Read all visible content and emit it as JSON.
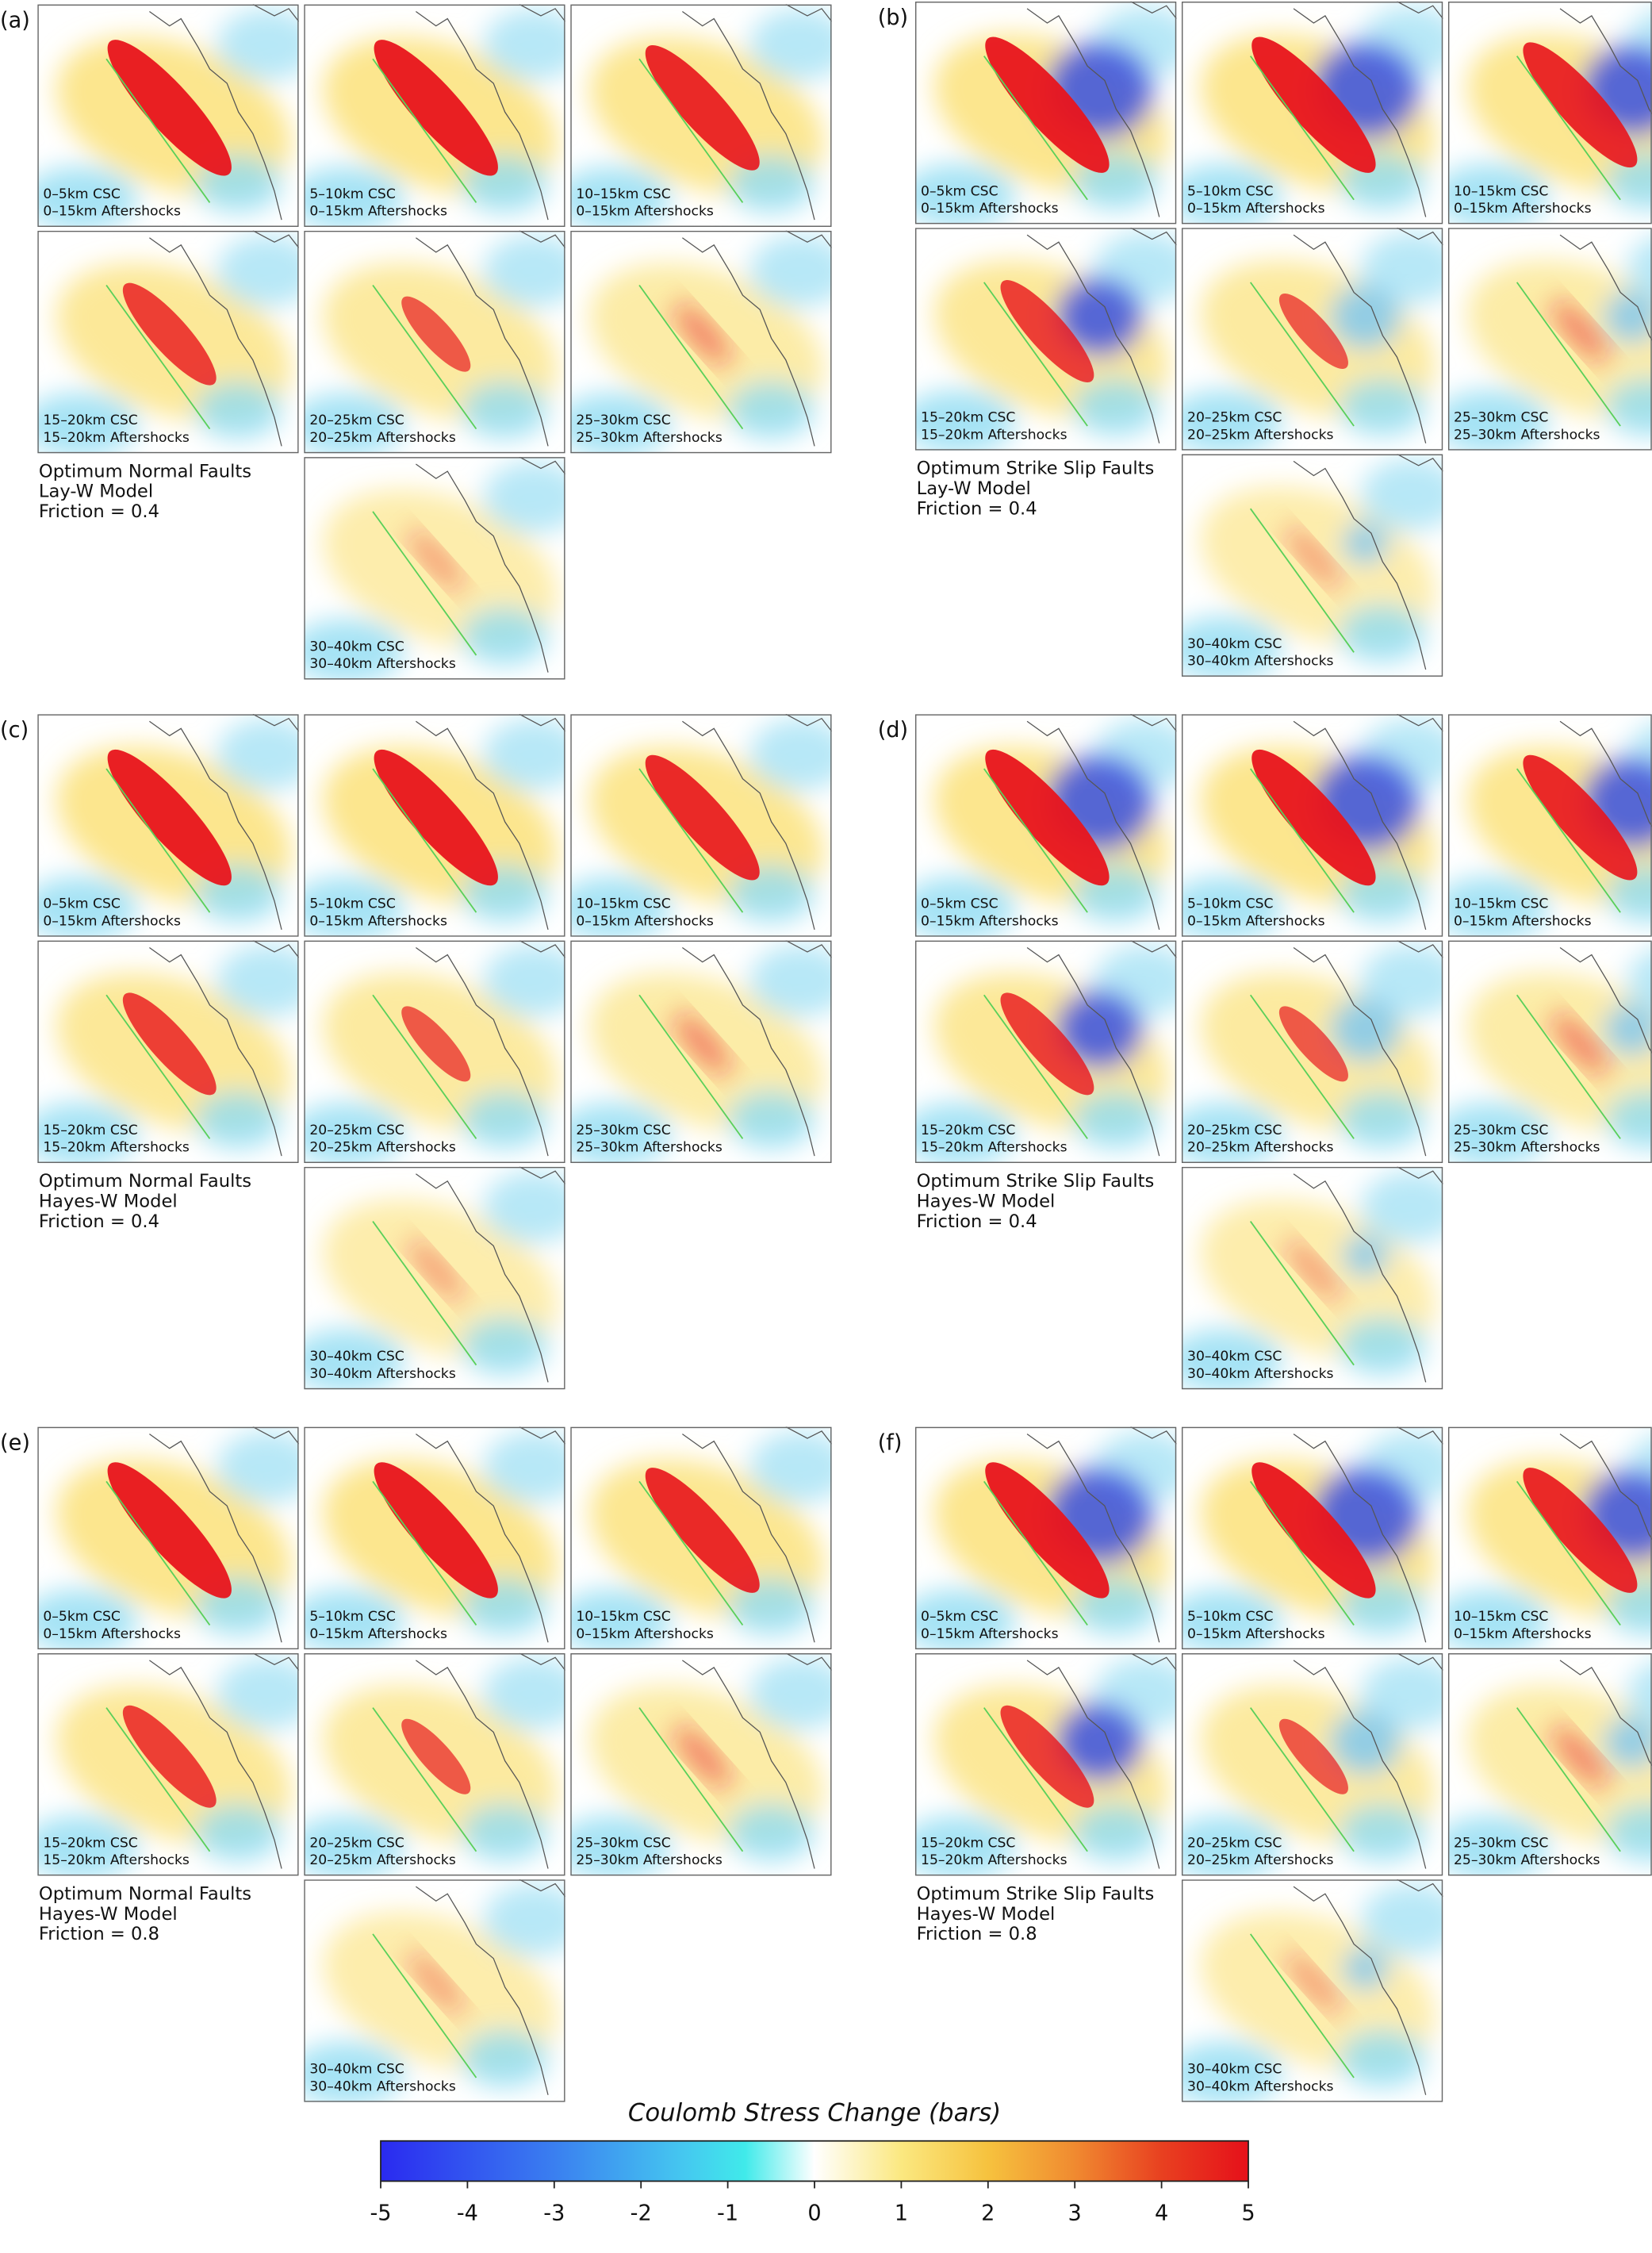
{
  "panels": [
    {
      "label": "(a)",
      "caption": [
        "Optimum Normal Faults",
        "Lay-W Model",
        "Friction = 0.4"
      ],
      "maps": [
        {
          "csc": "0–5km CSC",
          "aftershocks": "0–15km Aftershocks"
        },
        {
          "csc": "5–10km CSC",
          "aftershocks": "0–15km Aftershocks"
        },
        {
          "csc": "10–15km CSC",
          "aftershocks": "0–15km Aftershocks"
        },
        {
          "csc": "15–20km CSC",
          "aftershocks": "15–20km Aftershocks"
        },
        {
          "csc": "20–25km CSC",
          "aftershocks": "20–25km Aftershocks"
        },
        {
          "csc": "25–30km CSC",
          "aftershocks": "25–30km Aftershocks"
        },
        {
          "csc": "30–40km CSC",
          "aftershocks": "30–40km Aftershocks"
        }
      ]
    },
    {
      "label": "(b)",
      "caption": [
        "Optimum Strike Slip Faults",
        "Lay-W Model",
        "Friction = 0.4"
      ],
      "maps": [
        {
          "csc": "0–5km CSC",
          "aftershocks": "0–15km Aftershocks"
        },
        {
          "csc": "5–10km CSC",
          "aftershocks": "0–15km Aftershocks"
        },
        {
          "csc": "10–15km CSC",
          "aftershocks": "0–15km Aftershocks"
        },
        {
          "csc": "15–20km CSC",
          "aftershocks": "15–20km Aftershocks"
        },
        {
          "csc": "20–25km CSC",
          "aftershocks": "20–25km Aftershocks"
        },
        {
          "csc": "25–30km CSC",
          "aftershocks": "25–30km Aftershocks"
        },
        {
          "csc": "30–40km CSC",
          "aftershocks": "30–40km Aftershocks"
        }
      ]
    },
    {
      "label": "(c)",
      "caption": [
        "Optimum Normal Faults",
        "Hayes-W Model",
        "Friction = 0.4"
      ],
      "maps": [
        {
          "csc": "0–5km CSC",
          "aftershocks": "0–15km Aftershocks"
        },
        {
          "csc": "5–10km CSC",
          "aftershocks": "0–15km Aftershocks"
        },
        {
          "csc": "10–15km CSC",
          "aftershocks": "0–15km Aftershocks"
        },
        {
          "csc": "15–20km CSC",
          "aftershocks": "15–20km Aftershocks"
        },
        {
          "csc": "20–25km CSC",
          "aftershocks": "20–25km Aftershocks"
        },
        {
          "csc": "25–30km CSC",
          "aftershocks": "25–30km Aftershocks"
        },
        {
          "csc": "30–40km CSC",
          "aftershocks": "30–40km Aftershocks"
        }
      ]
    },
    {
      "label": "(d)",
      "caption": [
        "Optimum Strike Slip Faults",
        "Hayes-W Model",
        "Friction = 0.4"
      ],
      "maps": [
        {
          "csc": "0–5km CSC",
          "aftershocks": "0–15km Aftershocks"
        },
        {
          "csc": "5–10km CSC",
          "aftershocks": "0–15km Aftershocks"
        },
        {
          "csc": "10–15km CSC",
          "aftershocks": "0–15km Aftershocks"
        },
        {
          "csc": "15–20km CSC",
          "aftershocks": "15–20km Aftershocks"
        },
        {
          "csc": "20–25km CSC",
          "aftershocks": "20–25km Aftershocks"
        },
        {
          "csc": "25–30km CSC",
          "aftershocks": "25–30km Aftershocks"
        },
        {
          "csc": "30–40km CSC",
          "aftershocks": "30–40km Aftershocks"
        }
      ]
    },
    {
      "label": "(e)",
      "caption": [
        "Optimum Normal Faults",
        "Hayes-W Model",
        "Friction = 0.8"
      ],
      "maps": [
        {
          "csc": "0–5km CSC",
          "aftershocks": "0–15km Aftershocks"
        },
        {
          "csc": "5–10km CSC",
          "aftershocks": "0–15km Aftershocks"
        },
        {
          "csc": "10–15km CSC",
          "aftershocks": "0–15km Aftershocks"
        },
        {
          "csc": "15–20km CSC",
          "aftershocks": "15–20km Aftershocks"
        },
        {
          "csc": "20–25km CSC",
          "aftershocks": "20–25km Aftershocks"
        },
        {
          "csc": "25–30km CSC",
          "aftershocks": "25–30km Aftershocks"
        },
        {
          "csc": "30–40km CSC",
          "aftershocks": "30–40km Aftershocks"
        }
      ]
    },
    {
      "label": "(f)",
      "caption": [
        "Optimum Strike Slip Faults",
        "Hayes-W Model",
        "Friction = 0.8"
      ],
      "maps": [
        {
          "csc": "0–5km CSC",
          "aftershocks": "0–15km Aftershocks"
        },
        {
          "csc": "5–10km CSC",
          "aftershocks": "0–15km Aftershocks"
        },
        {
          "csc": "10–15km CSC",
          "aftershocks": "0–15km Aftershocks"
        },
        {
          "csc": "15–20km CSC",
          "aftershocks": "15–20km Aftershocks"
        },
        {
          "csc": "20–25km CSC",
          "aftershocks": "20–25km Aftershocks"
        },
        {
          "csc": "25–30km CSC",
          "aftershocks": "25–30km Aftershocks"
        },
        {
          "csc": "30–40km CSC",
          "aftershocks": "30–40km Aftershocks"
        }
      ]
    }
  ],
  "colorbar": {
    "title": "Coulomb Stress Change (bars)",
    "range": [
      -5,
      5
    ],
    "ticks": [
      -5,
      -4,
      -3,
      -2,
      -1,
      0,
      1,
      2,
      3,
      4,
      5
    ]
  }
}
